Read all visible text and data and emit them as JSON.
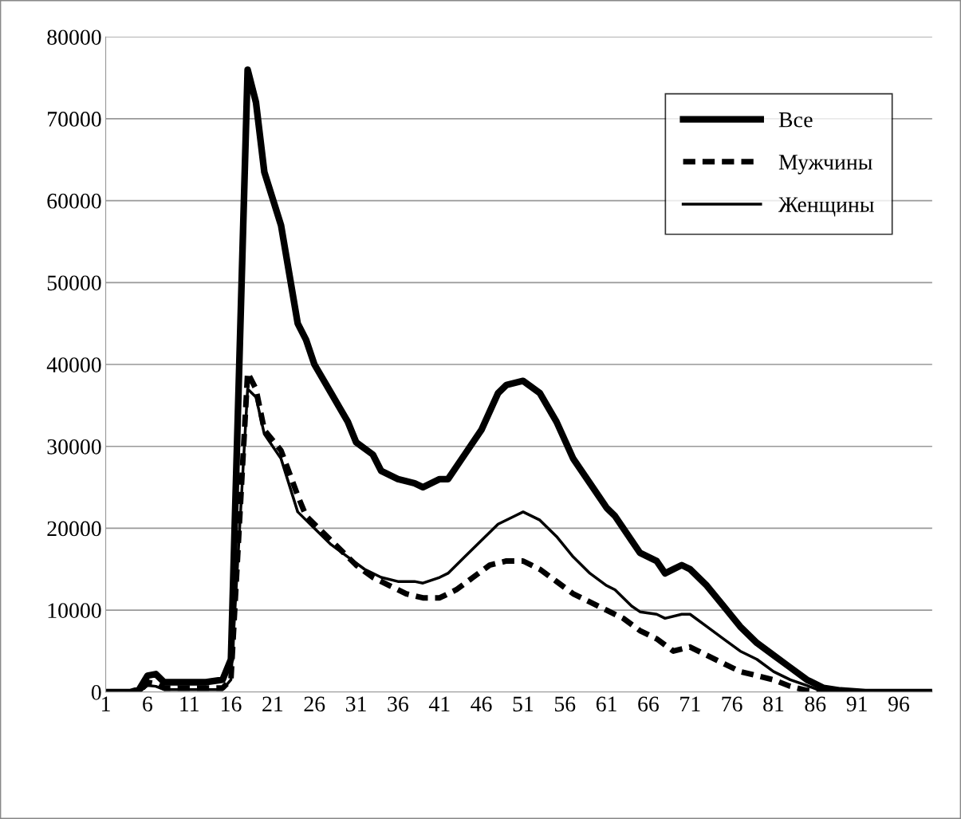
{
  "chart_data": {
    "type": "line",
    "xlim": [
      1,
      100
    ],
    "xticks": [
      1,
      6,
      11,
      16,
      21,
      26,
      31,
      36,
      41,
      46,
      51,
      56,
      61,
      66,
      71,
      76,
      81,
      86,
      91,
      96
    ],
    "ylim": [
      0,
      80000
    ],
    "yticks": [
      0,
      10000,
      20000,
      30000,
      40000,
      50000,
      60000,
      70000,
      80000
    ],
    "grid": "y",
    "legend": "top right",
    "series": [
      {
        "name": "Все",
        "color": "#000000",
        "line_style": "solid",
        "x": [
          1,
          4,
          5,
          6,
          7,
          8,
          10,
          13,
          15,
          16,
          18,
          19,
          20,
          22,
          23,
          24,
          25,
          26,
          28,
          30,
          31,
          33,
          34,
          36,
          38,
          39,
          41,
          42,
          44,
          46,
          48,
          49,
          51,
          53,
          55,
          57,
          59,
          61,
          62,
          64,
          65,
          67,
          68,
          69,
          70,
          71,
          73,
          75,
          77,
          79,
          81,
          83,
          85,
          87,
          89,
          92,
          100
        ],
        "values": [
          0,
          0,
          300,
          2000,
          2200,
          1200,
          1200,
          1200,
          1500,
          4000,
          76000,
          72000,
          63500,
          57000,
          51000,
          45000,
          43000,
          40000,
          36500,
          33000,
          30500,
          29000,
          27000,
          26000,
          25500,
          25000,
          26000,
          26000,
          29000,
          32000,
          36500,
          37500,
          38000,
          36500,
          33000,
          28500,
          25500,
          22500,
          21500,
          18500,
          17000,
          16000,
          14500,
          15000,
          15500,
          15000,
          13000,
          10500,
          8000,
          6000,
          4500,
          3000,
          1500,
          500,
          200,
          0,
          0
        ]
      },
      {
        "name": "Мужчины",
        "color": "#000000",
        "line_style": "dashed",
        "x": [
          1,
          5,
          6,
          7,
          8,
          15,
          16,
          18,
          19,
          20,
          22,
          24,
          25,
          27,
          29,
          31,
          33,
          35,
          37,
          39,
          41,
          43,
          45,
          47,
          49,
          51,
          53,
          55,
          57,
          59,
          61,
          63,
          65,
          67,
          69,
          71,
          73,
          75,
          77,
          79,
          81,
          83,
          85,
          87,
          100
        ],
        "values": [
          0,
          0,
          1200,
          1000,
          500,
          500,
          1500,
          39000,
          37000,
          32000,
          29500,
          24000,
          21500,
          19500,
          17500,
          15500,
          14000,
          13000,
          12000,
          11500,
          11500,
          12500,
          14000,
          15500,
          16000,
          16000,
          15000,
          13500,
          12000,
          11000,
          10000,
          9000,
          7500,
          6500,
          5000,
          5500,
          4500,
          3500,
          2500,
          2000,
          1500,
          700,
          200,
          0,
          0
        ]
      },
      {
        "name": "Женщины",
        "color": "#000000",
        "line_style": "solid",
        "x": [
          1,
          5,
          6,
          7,
          8,
          15,
          16,
          18,
          19,
          20,
          22,
          24,
          26,
          28,
          30,
          32,
          34,
          36,
          38,
          39,
          41,
          42,
          44,
          46,
          48,
          50,
          51,
          53,
          55,
          57,
          59,
          61,
          62,
          64,
          65,
          67,
          68,
          70,
          71,
          73,
          75,
          77,
          79,
          81,
          83,
          85,
          87,
          100
        ],
        "values": [
          0,
          0,
          800,
          700,
          300,
          300,
          1500,
          37000,
          36000,
          31500,
          28500,
          22000,
          20000,
          18000,
          16500,
          15000,
          14000,
          13500,
          13500,
          13300,
          14000,
          14500,
          16500,
          18500,
          20500,
          21500,
          22000,
          21000,
          19000,
          16500,
          14500,
          13000,
          12500,
          10500,
          9800,
          9500,
          9000,
          9500,
          9500,
          8000,
          6500,
          5000,
          4000,
          2500,
          1500,
          800,
          0,
          0
        ]
      }
    ]
  }
}
